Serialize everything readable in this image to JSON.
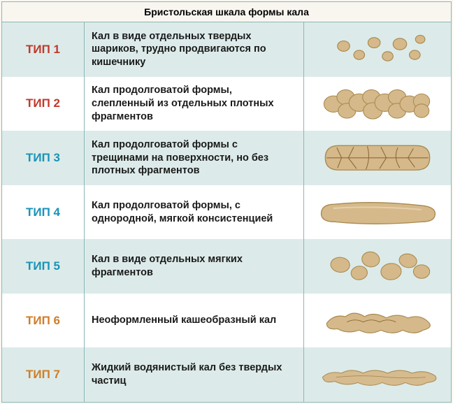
{
  "title": "Бристольская шкала формы кала",
  "grid_color": "#8bb8b5",
  "stripe_colors": [
    "#ffffff",
    "#dcebe9"
  ],
  "background": "#f9f6f0",
  "illustration_fill": "#d6b98a",
  "illustration_stroke": "#a88950",
  "illustration_crack": "#8a6a35",
  "text_color": "#1a1a1a",
  "fonts": {
    "title_fontsize": 14,
    "type_fontsize": 17,
    "desc_fontsize": 14.5,
    "family": "Arial"
  },
  "rows": [
    {
      "label": "ТИП 1",
      "color": "#c0392b",
      "description": "Кал в виде отдельных твердых шариков, трудно продвигаются по кишечнику",
      "shape": "balls"
    },
    {
      "label": "ТИП 2",
      "color": "#c0392b",
      "description": "Кал продолговатой формы, слепленный из отдельных плотных фрагментов",
      "shape": "lumpy-log"
    },
    {
      "label": "ТИП 3",
      "color": "#1a93b8",
      "description": "Кал продолговатой формы с трещинами на поверхности, но без плотных фрагментов",
      "shape": "cracked-log"
    },
    {
      "label": "ТИП 4",
      "color": "#1a93b8",
      "description": "Кал продолговатой формы, с однородной, мягкой консистенцией",
      "shape": "smooth-log"
    },
    {
      "label": "ТИП 5",
      "color": "#1a93b8",
      "description": "Кал в виде отдельных мягких фрагментов",
      "shape": "soft-blobs"
    },
    {
      "label": "ТИП 6",
      "color": "#cf7d29",
      "description": "Неоформленный кашеобразный кал",
      "shape": "mushy"
    },
    {
      "label": "ТИП 7",
      "color": "#cf7d29",
      "description": "Жидкий водянистый кал без твердых частиц",
      "shape": "liquid"
    }
  ]
}
